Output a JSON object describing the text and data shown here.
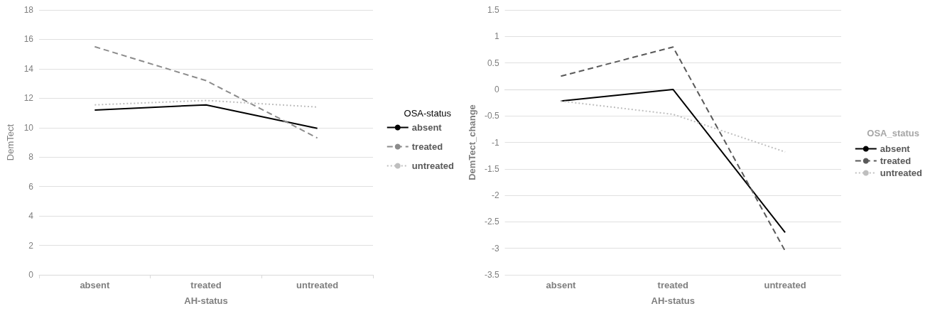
{
  "chart_data": [
    {
      "type": "line",
      "xlabel": "AH-status",
      "ylabel": "DemTect",
      "legend_title": "OSA-status",
      "categories": [
        "absent",
        "treated",
        "untreated"
      ],
      "ylim": [
        0,
        18
      ],
      "yticks": [
        0,
        2,
        4,
        6,
        8,
        10,
        12,
        14,
        16,
        18
      ],
      "grid": "y",
      "legend": "right",
      "marker": "none",
      "series": [
        {
          "name": "absent",
          "color": "#000000",
          "line_style": "solid",
          "values": [
            11.2,
            11.55,
            9.95
          ]
        },
        {
          "name": "treated",
          "color": "#8c8c8c",
          "line_style": "dashed",
          "values": [
            15.5,
            13.2,
            9.3
          ]
        },
        {
          "name": "untreated",
          "color": "#bfbfbf",
          "line_style": "dotted",
          "values": [
            11.55,
            11.85,
            11.4
          ]
        }
      ]
    },
    {
      "type": "line",
      "xlabel": "AH-status",
      "ylabel": "DemTect_change",
      "legend_title": "OSA_status",
      "categories": [
        "absent",
        "treated",
        "untreated"
      ],
      "ylim": [
        -3.5,
        1.5
      ],
      "yticks": [
        -3.5,
        -3,
        -2.5,
        -2,
        -1.5,
        -1,
        -0.5,
        0,
        0.5,
        1,
        1.5
      ],
      "grid": "y",
      "legend": "right",
      "marker": "none",
      "series": [
        {
          "name": "absent",
          "color": "#000000",
          "line_style": "solid",
          "values": [
            -0.22,
            0,
            -2.7
          ]
        },
        {
          "name": "treated",
          "color": "#595959",
          "line_style": "dashed",
          "values": [
            0.25,
            0.8,
            -3.05
          ]
        },
        {
          "name": "untreated",
          "color": "#bfbfbf",
          "line_style": "dotted",
          "values": [
            -0.22,
            -0.47,
            -1.18
          ]
        }
      ]
    }
  ]
}
